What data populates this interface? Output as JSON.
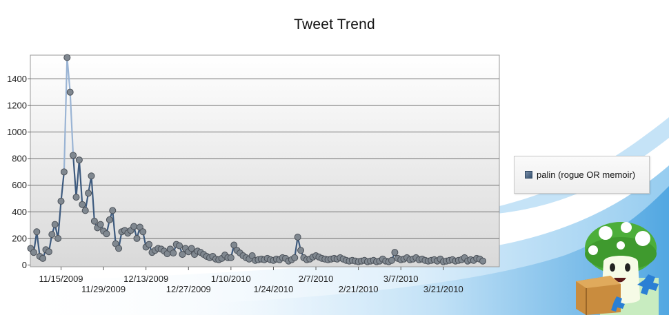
{
  "chart_data": {
    "type": "line",
    "title": "Tweet Trend",
    "xlabel": "",
    "ylabel": "",
    "ylim": [
      0,
      1600
    ],
    "y_ticks": [
      0,
      200,
      400,
      600,
      800,
      1000,
      1200,
      1400
    ],
    "x_range": [
      "2009-11-05",
      "2010-04-08"
    ],
    "x_tick_labels": [
      "11/15/2009",
      "11/29/2009",
      "12/13/2009",
      "12/27/2009",
      "1/10/2010",
      "1/24/2010",
      "2/7/2010",
      "2/21/2010",
      "3/7/2010",
      "3/21/2010"
    ],
    "x_tick_dates": [
      "2009-11-15",
      "2009-11-29",
      "2009-12-13",
      "2009-12-27",
      "2010-01-10",
      "2010-01-24",
      "2010-02-07",
      "2010-02-21",
      "2010-03-07",
      "2010-03-21"
    ],
    "grid": "horizontal",
    "legend_position": "right",
    "series": [
      {
        "name": "palin (rogue OR memoir)",
        "color": "#3d5a7e",
        "marker_color": "#808890",
        "start_date": "2009-11-05",
        "values": [
          125,
          95,
          250,
          65,
          50,
          115,
          100,
          230,
          305,
          200,
          480,
          700,
          1560,
          1300,
          825,
          510,
          790,
          455,
          410,
          540,
          670,
          330,
          280,
          305,
          255,
          235,
          340,
          410,
          160,
          125,
          250,
          260,
          240,
          260,
          290,
          200,
          285,
          250,
          135,
          155,
          95,
          110,
          125,
          120,
          105,
          85,
          120,
          90,
          155,
          145,
          80,
          125,
          100,
          125,
          80,
          105,
          95,
          80,
          65,
          55,
          65,
          45,
          40,
          50,
          75,
          55,
          55,
          150,
          110,
          90,
          70,
          55,
          45,
          70,
          35,
          40,
          45,
          40,
          50,
          40,
          35,
          45,
          40,
          55,
          50,
          30,
          40,
          55,
          210,
          110,
          55,
          40,
          45,
          60,
          70,
          60,
          50,
          45,
          40,
          45,
          50,
          45,
          55,
          45,
          35,
          30,
          35,
          30,
          25,
          30,
          35,
          25,
          30,
          35,
          25,
          30,
          45,
          30,
          25,
          35,
          95,
          50,
          40,
          45,
          55,
          40,
          45,
          55,
          40,
          45,
          35,
          30,
          35,
          40,
          30,
          45,
          25,
          30,
          35,
          40,
          30,
          35,
          40,
          55,
          30,
          40,
          35,
          50,
          45,
          30
        ]
      }
    ]
  },
  "decor": {
    "background_wave_color": "#4aa3e0",
    "mascot": "mushroom-mascot-with-box"
  }
}
